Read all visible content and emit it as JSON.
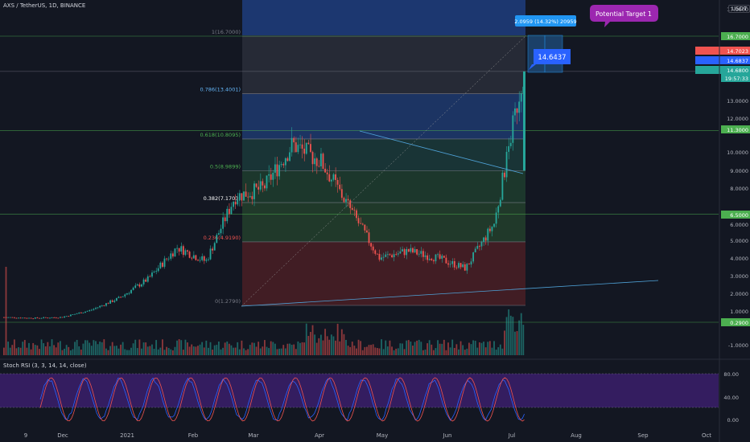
{
  "header": {
    "symbol_title": "AXS / TetherUS, 1D, BINANCE",
    "currency": "USDT"
  },
  "rsi_panel": {
    "title": "Stoch RSI (3, 3, 14, 14, close)",
    "ticks": [
      "80.00",
      "40.00",
      "0.00"
    ]
  },
  "annotations": {
    "measure_label": "2.0959 (14.32%) 20959",
    "target_label": "Potential Target 1",
    "price_callout": "14.6437"
  },
  "price_scale": {
    "ticks": [
      "17.0000",
      "16.7000",
      "14.7023",
      "14.6837",
      "14.6800",
      "19:57:33",
      "13.0000",
      "12.0000",
      "11.3000",
      "10.0000",
      "9.0000",
      "8.0000",
      "6.5000",
      "6.0000",
      "5.0000",
      "4.0000",
      "3.0000",
      "2.0000",
      "1.0000",
      "0.2900",
      "-1.0000"
    ]
  },
  "fib_labels": [
    "1(16.7000)",
    "0.786(13.4001)",
    "0.618(10.8095)",
    "0.5(8.9899)",
    "0.382(7.1703)",
    "0.236(4.9190)",
    "0(1.2790)"
  ],
  "chart_data": {
    "type": "candlestick",
    "title": "AXS / TetherUS, 1D, BINANCE",
    "x_ticks": [
      "9",
      "Dec",
      "2021",
      "Feb",
      "Mar",
      "Apr",
      "May",
      "Jun",
      "Jul",
      "Aug",
      "Sep",
      "Oct"
    ],
    "ylim": [
      -1.0,
      17.5
    ],
    "ohlc_close_samples": [
      {
        "month": "Nov",
        "close": 0.6
      },
      {
        "month": "Dec",
        "close": 0.55
      },
      {
        "month": "Jan",
        "close": 0.6
      },
      {
        "month": "Feb",
        "close": 1.0
      },
      {
        "month": "Feb-late",
        "close": 1.7
      },
      {
        "month": "Mar",
        "close": 2.8
      },
      {
        "month": "Mar-mid",
        "close": 4.6
      },
      {
        "month": "Mar-late",
        "close": 3.8
      },
      {
        "month": "Apr",
        "close": 7.5
      },
      {
        "month": "Apr-mid",
        "close": 8.0
      },
      {
        "month": "Apr-late",
        "close": 10.5
      },
      {
        "month": "May",
        "close": 9.5
      },
      {
        "month": "May-mid",
        "close": 6.8
      },
      {
        "month": "May-late",
        "close": 4.0
      },
      {
        "month": "Jun",
        "close": 4.4
      },
      {
        "month": "Jun-mid",
        "close": 4.0
      },
      {
        "month": "Jun-late",
        "close": 3.4
      },
      {
        "month": "Jul",
        "close": 6.0
      },
      {
        "month": "Jul-mid",
        "close": 14.68
      }
    ],
    "last_price": 14.68,
    "ask": 14.7023,
    "bid": 14.6837,
    "horizontal_levels": [
      16.7,
      11.3,
      6.5,
      0.29
    ],
    "fibonacci": [
      {
        "ratio": 1,
        "price": 16.7
      },
      {
        "ratio": 0.786,
        "price": 13.4001
      },
      {
        "ratio": 0.618,
        "price": 10.8095
      },
      {
        "ratio": 0.5,
        "price": 8.9899
      },
      {
        "ratio": 0.382,
        "price": 7.1703
      },
      {
        "ratio": 0.236,
        "price": 4.919
      },
      {
        "ratio": 0,
        "price": 1.279
      }
    ],
    "volume": "bars beneath price, peaks near April and July",
    "stoch_rsi_range": [
      0,
      100
    ],
    "legend": "none"
  },
  "colors": {
    "background": "#131722",
    "up": "#26a69a",
    "down": "#ef5350",
    "fib_top_zone": "#2a2e39",
    "fib_blue": "#1e3a6e",
    "fib_green": "#1f3d2e",
    "fib_red": "#4a1f24",
    "rsi_band": "#3b1f6b",
    "accent_blue": "#2962ff",
    "target_purple": "#9c27b0",
    "level_green": "#4caf50"
  }
}
